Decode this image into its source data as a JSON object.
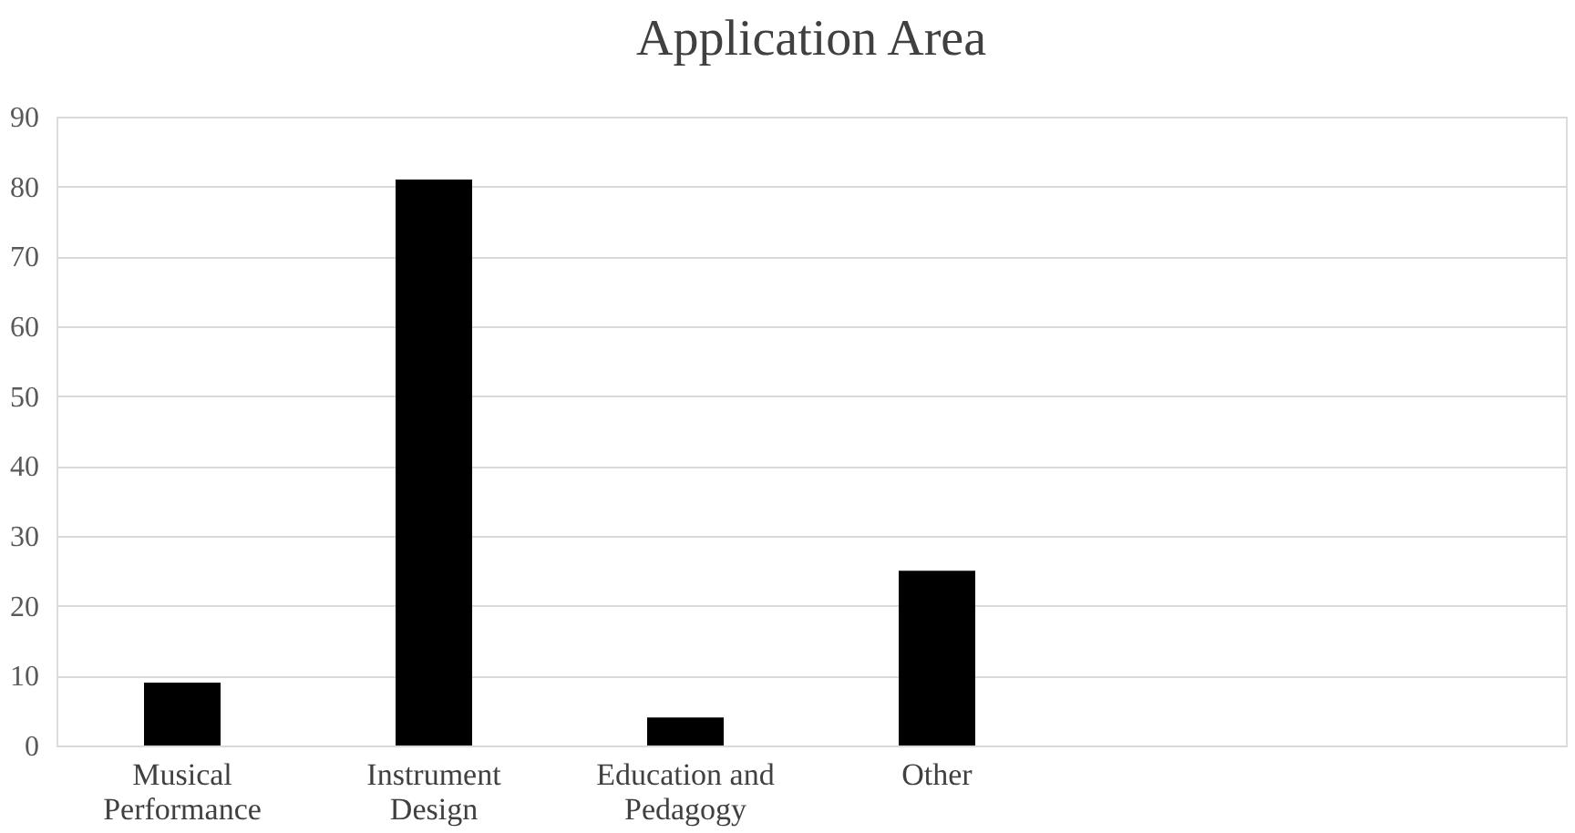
{
  "chart_data": {
    "type": "bar",
    "title": "Application Area",
    "categories": [
      "Musical Performance",
      "Instrument Design",
      "Education and Pedagogy",
      "Other",
      null,
      null
    ],
    "values": [
      9,
      81,
      4,
      25,
      null,
      null
    ],
    "color": "#000000",
    "ylim": [
      0,
      90
    ],
    "yticks": [
      0,
      10,
      20,
      30,
      40,
      50,
      60,
      70,
      80,
      90
    ],
    "grid": "y"
  }
}
